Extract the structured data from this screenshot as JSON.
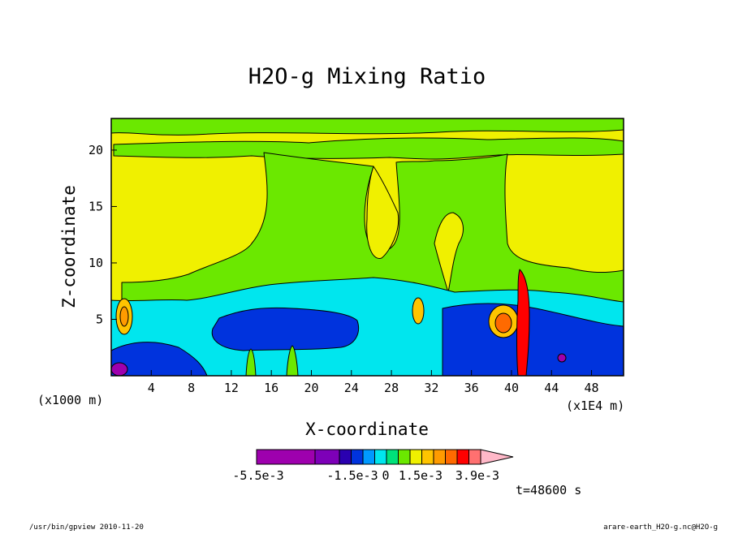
{
  "chart_data": {
    "type": "heatmap",
    "title": "H2O-g Mixing Ratio",
    "xlabel": "X-coordinate",
    "ylabel": "Z-coordinate",
    "x_unit_left": "(x1000 m)",
    "x_unit_right": "(x1E4 m)",
    "x_ticks": [
      4,
      8,
      12,
      16,
      20,
      24,
      28,
      32,
      36,
      40,
      44,
      48
    ],
    "x_tick_labels": [
      "4",
      "8",
      "12",
      "16",
      "20",
      "24",
      "28",
      "32",
      "36",
      "40",
      "44",
      "48"
    ],
    "y_ticks": [
      5,
      10,
      15,
      20
    ],
    "y_tick_labels": [
      "5",
      "10",
      "15",
      "20"
    ],
    "xlim": [
      0,
      51.2
    ],
    "ylim": [
      0,
      22.8
    ],
    "colorbar": {
      "colors": [
        "#9e00ae",
        "#7d00b8",
        "#2a00b0",
        "#0033dd",
        "#0099ff",
        "#00e6ee",
        "#00e27a",
        "#6be800",
        "#f0f000",
        "#ffc400",
        "#ff9b00",
        "#ff6a00",
        "#ff0000",
        "#ff7070",
        "#ffb8c8"
      ],
      "labels": [
        "-5.5e-3",
        "-1.5e-3",
        "0",
        "1.5e-3",
        "3.9e-3"
      ]
    },
    "time_label": "t=48600 s"
  },
  "footer": {
    "left": "/usr/bin/gpview  2010-11-20",
    "right": "arare-earth_H2O-g.nc@H2O-g"
  }
}
